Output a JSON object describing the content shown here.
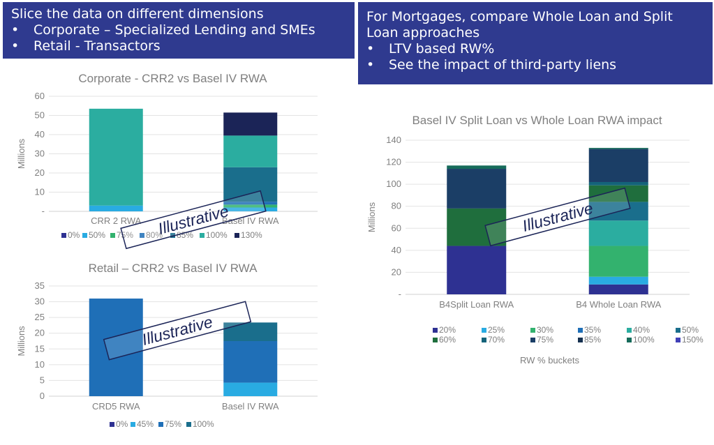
{
  "callout_left": {
    "title": "Slice the data on different dimensions",
    "bullets": [
      "Corporate  – Specialized Lending and SMEs",
      "Retail - Transactors"
    ]
  },
  "callout_right": {
    "title": "For Mortgages, compare Whole Loan and Split Loan approaches",
    "bullets": [
      "LTV based RW%",
      "See the impact of third-party liens"
    ]
  },
  "chart_data": [
    {
      "type": "bar",
      "stacked": true,
      "title": "Corporate  - CRR2 vs Basel IV RWA",
      "ylabel": "Millions",
      "ylim": [
        0,
        60
      ],
      "ytick_labels": [
        "-",
        "10",
        "20",
        "30",
        "40",
        "50",
        "60"
      ],
      "categories": [
        "CRR 2 RWA",
        "Basel IV RWA"
      ],
      "series": [
        {
          "name": "0%",
          "color": "#2e3192",
          "values": [
            0,
            0
          ]
        },
        {
          "name": "50%",
          "color": "#29abe2",
          "values": [
            3,
            2
          ]
        },
        {
          "name": "75%",
          "color": "#33b26e",
          "values": [
            0,
            1.5
          ]
        },
        {
          "name": "80%",
          "color": "#1f6fb7",
          "values": [
            0,
            1.5
          ]
        },
        {
          "name": "85%",
          "color": "#1a6e8c",
          "values": [
            0,
            18
          ]
        },
        {
          "name": "100%",
          "color": "#2bada0",
          "values": [
            50.5,
            16.5
          ]
        },
        {
          "name": "130%",
          "color": "#1b2457",
          "values": [
            0,
            12
          ]
        }
      ],
      "watermark": "Illustrative",
      "legend": "bottom",
      "grid": true
    },
    {
      "type": "bar",
      "stacked": true,
      "title": "Retail – CRR2 vs Basel IV RWA",
      "ylabel": "Millions",
      "ylim": [
        0,
        35
      ],
      "ytick_labels": [
        "0",
        "5",
        "10",
        "15",
        "20",
        "25",
        "30",
        "35"
      ],
      "categories": [
        "CRD5 RWA",
        "Basel IV RWA"
      ],
      "series": [
        {
          "name": "0%",
          "color": "#2e3192",
          "values": [
            0,
            0
          ]
        },
        {
          "name": "45%",
          "color": "#29abe2",
          "values": [
            0,
            4.3
          ]
        },
        {
          "name": "75%",
          "color": "#1f6fb7",
          "values": [
            31,
            13.2
          ]
        },
        {
          "name": "100%",
          "color": "#1a6e8c",
          "values": [
            0,
            5.9
          ]
        }
      ],
      "watermark": "Illustrative",
      "legend": "bottom",
      "grid": true
    },
    {
      "type": "bar",
      "stacked": true,
      "title": "Basel IV Split Loan vs Whole Loan RWA impact",
      "ylabel": "Millions",
      "xlabel": "RW % buckets",
      "ylim": [
        0,
        140
      ],
      "ytick_labels": [
        "-",
        "20",
        "40",
        "60",
        "80",
        "100",
        "120",
        "140"
      ],
      "categories": [
        "B4Split Loan RWA",
        "B4 Whole Loan RWA"
      ],
      "series": [
        {
          "name": "20%",
          "color": "#2e3192",
          "values": [
            44,
            9
          ]
        },
        {
          "name": "25%",
          "color": "#29abe2",
          "values": [
            0,
            7
          ]
        },
        {
          "name": "30%",
          "color": "#33b26e",
          "values": [
            0,
            28
          ]
        },
        {
          "name": "35%",
          "color": "#1f6fb7",
          "values": [
            0,
            0
          ]
        },
        {
          "name": "40%",
          "color": "#2bada0",
          "values": [
            0,
            23
          ]
        },
        {
          "name": "50%",
          "color": "#1a6e8c",
          "values": [
            0,
            17
          ]
        },
        {
          "name": "60%",
          "color": "#1f6e3d",
          "values": [
            34,
            15
          ]
        },
        {
          "name": "70%",
          "color": "#14637a",
          "values": [
            0,
            3
          ]
        },
        {
          "name": "75%",
          "color": "#1b3e66",
          "values": [
            36,
            30
          ]
        },
        {
          "name": "85%",
          "color": "#15304f",
          "values": [
            0,
            0
          ]
        },
        {
          "name": "100%",
          "color": "#166b5a",
          "values": [
            3,
            1
          ]
        },
        {
          "name": "150%",
          "color": "#4140b8",
          "values": [
            0,
            0
          ]
        }
      ],
      "watermark": "Illustrative",
      "legend": "bottom",
      "grid": true
    }
  ]
}
